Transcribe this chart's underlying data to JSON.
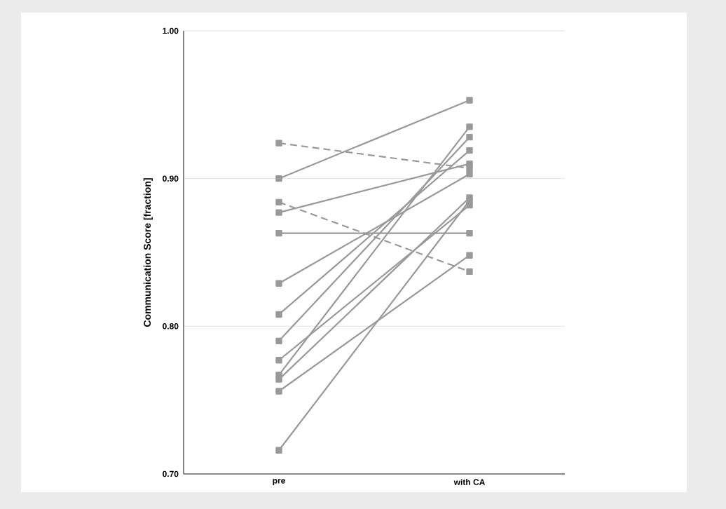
{
  "chart_data": {
    "type": "line",
    "ylabel": "Communication Score [fraction]",
    "categories": [
      "pre",
      "with CA"
    ],
    "ylim": [
      0.7,
      1.0
    ],
    "yticks": [
      {
        "value": 0.7,
        "label": "0.70"
      },
      {
        "value": 0.8,
        "label": "0.80"
      },
      {
        "value": 0.9,
        "label": "0.90"
      },
      {
        "value": 1.0,
        "label": "1.00"
      }
    ],
    "grid": "y",
    "marker": "square",
    "series": [
      {
        "color": "#999999",
        "line_style": "dashed",
        "values": [
          0.924,
          0.907
        ]
      },
      {
        "color": "#999999",
        "line_style": "solid",
        "values": [
          0.9,
          0.953
        ]
      },
      {
        "color": "#999999",
        "line_style": "dashed",
        "values": [
          0.884,
          0.837
        ]
      },
      {
        "color": "#999999",
        "line_style": "solid",
        "values": [
          0.877,
          0.91
        ]
      },
      {
        "color": "#999999",
        "line_style": "solid",
        "values": [
          0.863,
          0.863
        ]
      },
      {
        "color": "#999999",
        "line_style": "solid",
        "values": [
          0.829,
          0.903
        ]
      },
      {
        "color": "#999999",
        "line_style": "solid",
        "values": [
          0.808,
          0.919
        ]
      },
      {
        "color": "#999999",
        "line_style": "solid",
        "values": [
          0.79,
          0.928
        ]
      },
      {
        "color": "#999999",
        "line_style": "solid",
        "values": [
          0.777,
          0.882
        ]
      },
      {
        "color": "#999999",
        "line_style": "solid",
        "values": [
          0.767,
          0.935
        ]
      },
      {
        "color": "#999999",
        "line_style": "solid",
        "values": [
          0.764,
          0.887
        ]
      },
      {
        "color": "#999999",
        "line_style": "solid",
        "values": [
          0.756,
          0.848
        ]
      },
      {
        "color": "#999999",
        "line_style": "solid",
        "values": [
          0.716,
          0.885
        ]
      }
    ]
  }
}
